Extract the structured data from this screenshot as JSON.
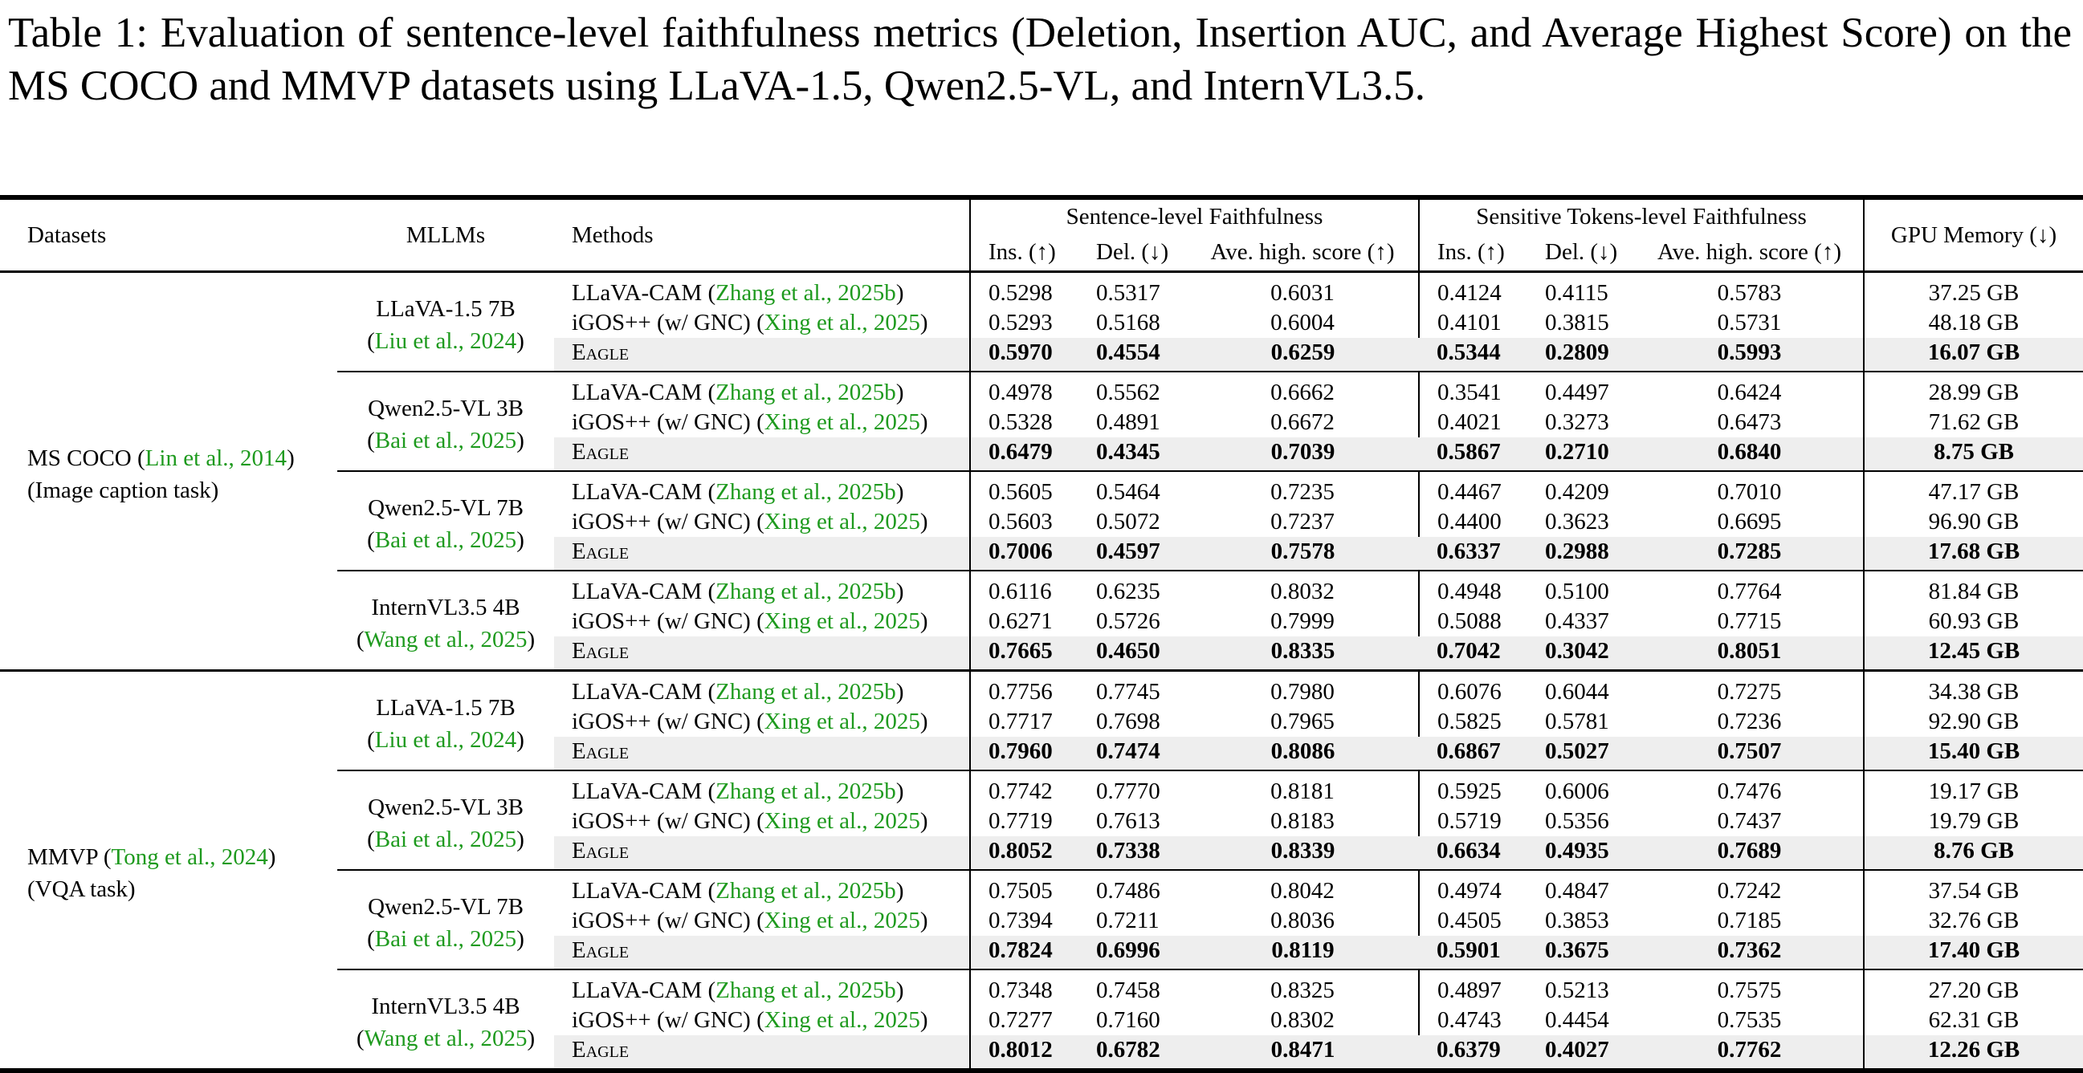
{
  "caption": "Table 1: Evaluation of sentence-level faithfulness metrics (Deletion, Insertion AUC, and Average Highest Score) on the MS COCO and MMVP datasets using LLaVA-1.5, Qwen2.5-VL, and InternVL3.5.",
  "header": {
    "datasets": "Datasets",
    "mllms": "MLLMs",
    "methods": "Methods",
    "sentence_group": "Sentence-level Faithfulness",
    "tokens_group": "Sensitive Tokens-level Faithfulness",
    "gpu": "GPU Memory (↓)",
    "ins": "Ins. (↑)",
    "del": "Del. (↓)",
    "ave": "Ave. high. score (↑)"
  },
  "colors": {
    "citation": "#1e9a1e",
    "highlight_row": "#eeeeee"
  },
  "datasets": [
    {
      "name": "MS COCO",
      "cite": "Lin et al., 2014",
      "task": "(Image caption task)",
      "models": [
        {
          "name": "LLaVA-1.5 7B",
          "cite": "Liu et al., 2024",
          "rows": [
            {
              "method": "LLaVA-CAM",
              "cite": "Zhang et al., 2025b",
              "s_ins": "0.5298",
              "s_del": "0.5317",
              "s_ave": "0.6031",
              "t_ins": "0.4124",
              "t_del": "0.4115",
              "t_ave": "0.5783",
              "gpu": "37.25 GB"
            },
            {
              "method": "iGOS++ (w/ GNC)",
              "cite": "Xing et al., 2025",
              "s_ins": "0.5293",
              "s_del": "0.5168",
              "s_ave": "0.6004",
              "t_ins": "0.4101",
              "t_del": "0.3815",
              "t_ave": "0.5731",
              "gpu": "48.18 GB"
            },
            {
              "method": "Eagle",
              "cite": null,
              "s_ins": "0.5970",
              "s_del": "0.4554",
              "s_ave": "0.6259",
              "t_ins": "0.5344",
              "t_del": "0.2809",
              "t_ave": "0.5993",
              "gpu": "16.07 GB"
            }
          ]
        },
        {
          "name": "Qwen2.5-VL 3B",
          "cite": "Bai et al., 2025",
          "rows": [
            {
              "method": "LLaVA-CAM",
              "cite": "Zhang et al., 2025b",
              "s_ins": "0.4978",
              "s_del": "0.5562",
              "s_ave": "0.6662",
              "t_ins": "0.3541",
              "t_del": "0.4497",
              "t_ave": "0.6424",
              "gpu": "28.99 GB"
            },
            {
              "method": "iGOS++ (w/ GNC)",
              "cite": "Xing et al., 2025",
              "s_ins": "0.5328",
              "s_del": "0.4891",
              "s_ave": "0.6672",
              "t_ins": "0.4021",
              "t_del": "0.3273",
              "t_ave": "0.6473",
              "gpu": "71.62 GB"
            },
            {
              "method": "Eagle",
              "cite": null,
              "s_ins": "0.6479",
              "s_del": "0.4345",
              "s_ave": "0.7039",
              "t_ins": "0.5867",
              "t_del": "0.2710",
              "t_ave": "0.6840",
              "gpu": "8.75 GB"
            }
          ]
        },
        {
          "name": "Qwen2.5-VL 7B",
          "cite": "Bai et al., 2025",
          "rows": [
            {
              "method": "LLaVA-CAM",
              "cite": "Zhang et al., 2025b",
              "s_ins": "0.5605",
              "s_del": "0.5464",
              "s_ave": "0.7235",
              "t_ins": "0.4467",
              "t_del": "0.4209",
              "t_ave": "0.7010",
              "gpu": "47.17 GB"
            },
            {
              "method": "iGOS++ (w/ GNC)",
              "cite": "Xing et al., 2025",
              "s_ins": "0.5603",
              "s_del": "0.5072",
              "s_ave": "0.7237",
              "t_ins": "0.4400",
              "t_del": "0.3623",
              "t_ave": "0.6695",
              "gpu": "96.90 GB"
            },
            {
              "method": "Eagle",
              "cite": null,
              "s_ins": "0.7006",
              "s_del": "0.4597",
              "s_ave": "0.7578",
              "t_ins": "0.6337",
              "t_del": "0.2988",
              "t_ave": "0.7285",
              "gpu": "17.68 GB"
            }
          ]
        },
        {
          "name": "InternVL3.5 4B",
          "cite": "Wang et al., 2025",
          "rows": [
            {
              "method": "LLaVA-CAM",
              "cite": "Zhang et al., 2025b",
              "s_ins": "0.6116",
              "s_del": "0.6235",
              "s_ave": "0.8032",
              "t_ins": "0.4948",
              "t_del": "0.5100",
              "t_ave": "0.7764",
              "gpu": "81.84 GB"
            },
            {
              "method": "iGOS++ (w/ GNC)",
              "cite": "Xing et al., 2025",
              "s_ins": "0.6271",
              "s_del": "0.5726",
              "s_ave": "0.7999",
              "t_ins": "0.5088",
              "t_del": "0.4337",
              "t_ave": "0.7715",
              "gpu": "60.93 GB"
            },
            {
              "method": "Eagle",
              "cite": null,
              "s_ins": "0.7665",
              "s_del": "0.4650",
              "s_ave": "0.8335",
              "t_ins": "0.7042",
              "t_del": "0.3042",
              "t_ave": "0.8051",
              "gpu": "12.45 GB"
            }
          ]
        }
      ]
    },
    {
      "name": "MMVP",
      "cite": "Tong et al., 2024",
      "task": "(VQA task)",
      "models": [
        {
          "name": "LLaVA-1.5 7B",
          "cite": "Liu et al., 2024",
          "rows": [
            {
              "method": "LLaVA-CAM",
              "cite": "Zhang et al., 2025b",
              "s_ins": "0.7756",
              "s_del": "0.7745",
              "s_ave": "0.7980",
              "t_ins": "0.6076",
              "t_del": "0.6044",
              "t_ave": "0.7275",
              "gpu": "34.38 GB"
            },
            {
              "method": "iGOS++ (w/ GNC)",
              "cite": "Xing et al., 2025",
              "s_ins": "0.7717",
              "s_del": "0.7698",
              "s_ave": "0.7965",
              "t_ins": "0.5825",
              "t_del": "0.5781",
              "t_ave": "0.7236",
              "gpu": "92.90 GB"
            },
            {
              "method": "Eagle",
              "cite": null,
              "s_ins": "0.7960",
              "s_del": "0.7474",
              "s_ave": "0.8086",
              "t_ins": "0.6867",
              "t_del": "0.5027",
              "t_ave": "0.7507",
              "gpu": "15.40 GB"
            }
          ]
        },
        {
          "name": "Qwen2.5-VL 3B",
          "cite": "Bai et al., 2025",
          "rows": [
            {
              "method": "LLaVA-CAM",
              "cite": "Zhang et al., 2025b",
              "s_ins": "0.7742",
              "s_del": "0.7770",
              "s_ave": "0.8181",
              "t_ins": "0.5925",
              "t_del": "0.6006",
              "t_ave": "0.7476",
              "gpu": "19.17 GB"
            },
            {
              "method": "iGOS++ (w/ GNC)",
              "cite": "Xing et al., 2025",
              "s_ins": "0.7719",
              "s_del": "0.7613",
              "s_ave": "0.8183",
              "t_ins": "0.5719",
              "t_del": "0.5356",
              "t_ave": "0.7437",
              "gpu": "19.79 GB"
            },
            {
              "method": "Eagle",
              "cite": null,
              "s_ins": "0.8052",
              "s_del": "0.7338",
              "s_ave": "0.8339",
              "t_ins": "0.6634",
              "t_del": "0.4935",
              "t_ave": "0.7689",
              "gpu": "8.76 GB"
            }
          ]
        },
        {
          "name": "Qwen2.5-VL 7B",
          "cite": "Bai et al., 2025",
          "rows": [
            {
              "method": "LLaVA-CAM",
              "cite": "Zhang et al., 2025b",
              "s_ins": "0.7505",
              "s_del": "0.7486",
              "s_ave": "0.8042",
              "t_ins": "0.4974",
              "t_del": "0.4847",
              "t_ave": "0.7242",
              "gpu": "37.54 GB"
            },
            {
              "method": "iGOS++ (w/ GNC)",
              "cite": "Xing et al., 2025",
              "s_ins": "0.7394",
              "s_del": "0.7211",
              "s_ave": "0.8036",
              "t_ins": "0.4505",
              "t_del": "0.3853",
              "t_ave": "0.7185",
              "gpu": "32.76 GB"
            },
            {
              "method": "Eagle",
              "cite": null,
              "s_ins": "0.7824",
              "s_del": "0.6996",
              "s_ave": "0.8119",
              "t_ins": "0.5901",
              "t_del": "0.3675",
              "t_ave": "0.7362",
              "gpu": "17.40 GB"
            }
          ]
        },
        {
          "name": "InternVL3.5 4B",
          "cite": "Wang et al., 2025",
          "rows": [
            {
              "method": "LLaVA-CAM",
              "cite": "Zhang et al., 2025b",
              "s_ins": "0.7348",
              "s_del": "0.7458",
              "s_ave": "0.8325",
              "t_ins": "0.4897",
              "t_del": "0.5213",
              "t_ave": "0.7575",
              "gpu": "27.20 GB"
            },
            {
              "method": "iGOS++ (w/ GNC)",
              "cite": "Xing et al., 2025",
              "s_ins": "0.7277",
              "s_del": "0.7160",
              "s_ave": "0.8302",
              "t_ins": "0.4743",
              "t_del": "0.4454",
              "t_ave": "0.7535",
              "gpu": "62.31 GB"
            },
            {
              "method": "Eagle",
              "cite": null,
              "s_ins": "0.8012",
              "s_del": "0.6782",
              "s_ave": "0.8471",
              "t_ins": "0.6379",
              "t_del": "0.4027",
              "t_ave": "0.7762",
              "gpu": "12.26 GB"
            }
          ]
        }
      ]
    }
  ]
}
